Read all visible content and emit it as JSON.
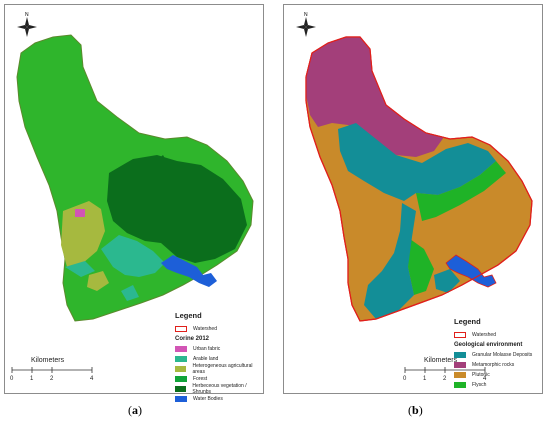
{
  "panels": [
    {
      "id": "a",
      "caption_letter": "a",
      "north": "N",
      "legend": {
        "title": "Legend",
        "watershed": "Watershed",
        "subtitle": "Corine 2012",
        "items": [
          {
            "label": "Urban fabric",
            "color": "#d255b5"
          },
          {
            "label": "Arable land",
            "color": "#2bb88f"
          },
          {
            "label": "Heterogeneous agricultural areas",
            "color": "#a6b93f"
          },
          {
            "label": "Forest",
            "color": "#11a43a"
          },
          {
            "label": "Herbeceous vegetation / Shrunbs",
            "color": "#0b6e1c"
          },
          {
            "label": "Water Bodies",
            "color": "#1d5fd8"
          }
        ]
      },
      "scale": {
        "title": "Kilometers",
        "ticks": [
          "0",
          "1",
          "2",
          "4"
        ]
      }
    },
    {
      "id": "b",
      "caption_letter": "b",
      "north": "N",
      "legend": {
        "title": "Legend",
        "watershed": "Watershed",
        "subtitle": "Geological environment",
        "items": [
          {
            "label": "Granular Molasse Deposits",
            "color": "#138e97"
          },
          {
            "label": "Metamorphic rocks",
            "color": "#a33f7a"
          },
          {
            "label": "Plutonic",
            "color": "#c98a2a"
          },
          {
            "label": "Flysch",
            "color": "#1fb327"
          }
        ]
      },
      "scale": {
        "title": "Kilometers",
        "ticks": [
          "0",
          "1",
          "2",
          "4"
        ]
      }
    }
  ],
  "colors": {
    "watershed_border": "#e0201b",
    "background_green": "#2fb52c"
  }
}
